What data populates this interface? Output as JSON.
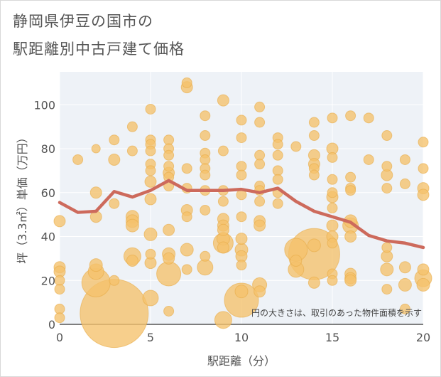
{
  "title_line1": "静岡県伊豆の国市の",
  "title_line2": "駅距離別中古戸建て価格",
  "chart_data": {
    "type": "scatter",
    "xlabel": "駅距離（分）",
    "ylabel": "坪（3.3㎡）単価（万円）",
    "xlim": [
      0,
      20
    ],
    "ylim": [
      0,
      115
    ],
    "x_ticks": [
      0,
      5,
      10,
      15,
      20
    ],
    "y_ticks": [
      0,
      20,
      40,
      60,
      80,
      100
    ],
    "grid": true,
    "annotation": "円の大きさは、取引のあった物件面積を示す",
    "colors": {
      "bubble": "#f5c26b",
      "bubble_stroke": "#e8ab48",
      "line": "#cd6a5c",
      "plot_bg": "#eef2f7",
      "grid": "#ffffff"
    },
    "bubbles": [
      {
        "x": 0,
        "y": 47,
        "s": 8
      },
      {
        "x": 0,
        "y": 26,
        "s": 8
      },
      {
        "x": 0,
        "y": 24,
        "s": 8
      },
      {
        "x": 0,
        "y": 20,
        "s": 7
      },
      {
        "x": 0,
        "y": 16,
        "s": 7
      },
      {
        "x": 0,
        "y": 7,
        "s": 7
      },
      {
        "x": 0,
        "y": 3,
        "s": 7
      },
      {
        "x": 1,
        "y": 75,
        "s": 7
      },
      {
        "x": 2,
        "y": 80,
        "s": 6
      },
      {
        "x": 2,
        "y": 60,
        "s": 8
      },
      {
        "x": 2,
        "y": 49,
        "s": 8
      },
      {
        "x": 2,
        "y": 27,
        "s": 9
      },
      {
        "x": 2,
        "y": 24,
        "s": 11
      },
      {
        "x": 2,
        "y": 19,
        "s": 20
      },
      {
        "x": 3,
        "y": 84,
        "s": 7
      },
      {
        "x": 3,
        "y": 75,
        "s": 8
      },
      {
        "x": 3,
        "y": 55,
        "s": 7
      },
      {
        "x": 3,
        "y": 20,
        "s": 7
      },
      {
        "x": 3,
        "y": 5,
        "s": 48
      },
      {
        "x": 4,
        "y": 90,
        "s": 7
      },
      {
        "x": 4,
        "y": 79,
        "s": 7
      },
      {
        "x": 4,
        "y": 49,
        "s": 9
      },
      {
        "x": 4,
        "y": 47,
        "s": 9
      },
      {
        "x": 4,
        "y": 45,
        "s": 9
      },
      {
        "x": 4,
        "y": 31,
        "s": 12
      },
      {
        "x": 4,
        "y": 29,
        "s": 8
      },
      {
        "x": 5,
        "y": 98,
        "s": 7
      },
      {
        "x": 5,
        "y": 84,
        "s": 7
      },
      {
        "x": 5,
        "y": 82,
        "s": 7
      },
      {
        "x": 5,
        "y": 79,
        "s": 7
      },
      {
        "x": 5,
        "y": 73,
        "s": 7
      },
      {
        "x": 5,
        "y": 70,
        "s": 7
      },
      {
        "x": 5,
        "y": 65,
        "s": 8
      },
      {
        "x": 5,
        "y": 57,
        "s": 8
      },
      {
        "x": 5,
        "y": 41,
        "s": 9
      },
      {
        "x": 5,
        "y": 32,
        "s": 7
      },
      {
        "x": 5,
        "y": 28,
        "s": 8
      },
      {
        "x": 5,
        "y": 12,
        "s": 11
      },
      {
        "x": 6,
        "y": 84,
        "s": 7
      },
      {
        "x": 6,
        "y": 80,
        "s": 7
      },
      {
        "x": 6,
        "y": 77,
        "s": 7
      },
      {
        "x": 6,
        "y": 72,
        "s": 7
      },
      {
        "x": 6,
        "y": 69,
        "s": 8
      },
      {
        "x": 6,
        "y": 67,
        "s": 7
      },
      {
        "x": 6,
        "y": 63,
        "s": 7
      },
      {
        "x": 6,
        "y": 43,
        "s": 8
      },
      {
        "x": 6,
        "y": 32,
        "s": 9
      },
      {
        "x": 6,
        "y": 30,
        "s": 8
      },
      {
        "x": 6,
        "y": 23,
        "s": 17
      },
      {
        "x": 6,
        "y": 6,
        "s": 7
      },
      {
        "x": 7,
        "y": 110,
        "s": 7
      },
      {
        "x": 7,
        "y": 108,
        "s": 8
      },
      {
        "x": 7,
        "y": 71,
        "s": 7
      },
      {
        "x": 7,
        "y": 62,
        "s": 7
      },
      {
        "x": 7,
        "y": 52,
        "s": 8
      },
      {
        "x": 7,
        "y": 49,
        "s": 7
      },
      {
        "x": 7,
        "y": 34,
        "s": 9
      },
      {
        "x": 7,
        "y": 25,
        "s": 7
      },
      {
        "x": 8,
        "y": 95,
        "s": 7
      },
      {
        "x": 8,
        "y": 86,
        "s": 7
      },
      {
        "x": 8,
        "y": 78,
        "s": 7
      },
      {
        "x": 8,
        "y": 75,
        "s": 7
      },
      {
        "x": 8,
        "y": 71,
        "s": 7
      },
      {
        "x": 8,
        "y": 68,
        "s": 7
      },
      {
        "x": 8,
        "y": 61,
        "s": 7
      },
      {
        "x": 8,
        "y": 52,
        "s": 7
      },
      {
        "x": 8,
        "y": 31,
        "s": 7
      },
      {
        "x": 8,
        "y": 26,
        "s": 11
      },
      {
        "x": 9,
        "y": 102,
        "s": 8
      },
      {
        "x": 9,
        "y": 79,
        "s": 7
      },
      {
        "x": 9,
        "y": 61,
        "s": 7
      },
      {
        "x": 9,
        "y": 56,
        "s": 7
      },
      {
        "x": 9,
        "y": 48,
        "s": 8
      },
      {
        "x": 9,
        "y": 45,
        "s": 8
      },
      {
        "x": 9,
        "y": 43,
        "s": 8
      },
      {
        "x": 9,
        "y": 39,
        "s": 9
      },
      {
        "x": 9,
        "y": 37,
        "s": 14
      },
      {
        "x": 9,
        "y": 35,
        "s": 8
      },
      {
        "x": 9,
        "y": 2,
        "s": 12
      },
      {
        "x": 10,
        "y": 93,
        "s": 7
      },
      {
        "x": 10,
        "y": 85,
        "s": 7
      },
      {
        "x": 10,
        "y": 72,
        "s": 7
      },
      {
        "x": 10,
        "y": 68,
        "s": 7
      },
      {
        "x": 10,
        "y": 59,
        "s": 7
      },
      {
        "x": 10,
        "y": 49,
        "s": 7
      },
      {
        "x": 10,
        "y": 39,
        "s": 8
      },
      {
        "x": 10,
        "y": 34,
        "s": 9
      },
      {
        "x": 10,
        "y": 31,
        "s": 8
      },
      {
        "x": 10,
        "y": 27,
        "s": 7
      },
      {
        "x": 10,
        "y": 15,
        "s": 9
      },
      {
        "x": 10,
        "y": 11,
        "s": 24
      },
      {
        "x": 11,
        "y": 99,
        "s": 7
      },
      {
        "x": 11,
        "y": 92,
        "s": 7
      },
      {
        "x": 11,
        "y": 77,
        "s": 7
      },
      {
        "x": 11,
        "y": 73,
        "s": 7
      },
      {
        "x": 11,
        "y": 63,
        "s": 7
      },
      {
        "x": 11,
        "y": 61,
        "s": 7
      },
      {
        "x": 11,
        "y": 56,
        "s": 7
      },
      {
        "x": 11,
        "y": 47,
        "s": 8
      },
      {
        "x": 11,
        "y": 45,
        "s": 8
      },
      {
        "x": 11,
        "y": 18,
        "s": 10
      },
      {
        "x": 11,
        "y": 15,
        "s": 8
      },
      {
        "x": 12,
        "y": 85,
        "s": 7
      },
      {
        "x": 12,
        "y": 82,
        "s": 7
      },
      {
        "x": 12,
        "y": 77,
        "s": 7
      },
      {
        "x": 12,
        "y": 70,
        "s": 7
      },
      {
        "x": 12,
        "y": 66,
        "s": 7
      },
      {
        "x": 12,
        "y": 60,
        "s": 7
      },
      {
        "x": 12,
        "y": 55,
        "s": 7
      },
      {
        "x": 13,
        "y": 81,
        "s": 7
      },
      {
        "x": 13,
        "y": 34,
        "s": 16
      },
      {
        "x": 13,
        "y": 29,
        "s": 8
      },
      {
        "x": 13,
        "y": 25,
        "s": 11
      },
      {
        "x": 14,
        "y": 92,
        "s": 7
      },
      {
        "x": 14,
        "y": 86,
        "s": 7
      },
      {
        "x": 14,
        "y": 77,
        "s": 8
      },
      {
        "x": 14,
        "y": 73,
        "s": 8
      },
      {
        "x": 14,
        "y": 71,
        "s": 7
      },
      {
        "x": 14,
        "y": 68,
        "s": 7
      },
      {
        "x": 14,
        "y": 36,
        "s": 9
      },
      {
        "x": 14,
        "y": 32,
        "s": 36
      },
      {
        "x": 14,
        "y": 19,
        "s": 8
      },
      {
        "x": 15,
        "y": 94,
        "s": 7
      },
      {
        "x": 15,
        "y": 80,
        "s": 8
      },
      {
        "x": 15,
        "y": 76,
        "s": 7
      },
      {
        "x": 15,
        "y": 66,
        "s": 7
      },
      {
        "x": 15,
        "y": 60,
        "s": 7
      },
      {
        "x": 15,
        "y": 58,
        "s": 8
      },
      {
        "x": 15,
        "y": 53,
        "s": 7
      },
      {
        "x": 15,
        "y": 45,
        "s": 8
      },
      {
        "x": 15,
        "y": 40,
        "s": 8
      },
      {
        "x": 15,
        "y": 37,
        "s": 7
      },
      {
        "x": 15,
        "y": 23,
        "s": 7
      },
      {
        "x": 15,
        "y": 20,
        "s": 7
      },
      {
        "x": 16,
        "y": 95,
        "s": 7
      },
      {
        "x": 16,
        "y": 67,
        "s": 7
      },
      {
        "x": 16,
        "y": 62,
        "s": 7
      },
      {
        "x": 16,
        "y": 61,
        "s": 7
      },
      {
        "x": 16,
        "y": 47,
        "s": 9
      },
      {
        "x": 16,
        "y": 45,
        "s": 11
      },
      {
        "x": 16,
        "y": 40,
        "s": 8
      },
      {
        "x": 16,
        "y": 23,
        "s": 8
      },
      {
        "x": 16,
        "y": 21,
        "s": 8
      },
      {
        "x": 16,
        "y": 20,
        "s": 8
      },
      {
        "x": 17,
        "y": 94,
        "s": 7
      },
      {
        "x": 17,
        "y": 75,
        "s": 7
      },
      {
        "x": 18,
        "y": 86,
        "s": 7
      },
      {
        "x": 18,
        "y": 72,
        "s": 7
      },
      {
        "x": 18,
        "y": 68,
        "s": 8
      },
      {
        "x": 18,
        "y": 62,
        "s": 7
      },
      {
        "x": 18,
        "y": 35,
        "s": 7
      },
      {
        "x": 18,
        "y": 31,
        "s": 8
      },
      {
        "x": 18,
        "y": 25,
        "s": 9
      },
      {
        "x": 18,
        "y": 16,
        "s": 7
      },
      {
        "x": 19,
        "y": 75,
        "s": 7
      },
      {
        "x": 19,
        "y": 64,
        "s": 7
      },
      {
        "x": 19,
        "y": 26,
        "s": 8
      },
      {
        "x": 19,
        "y": 18,
        "s": 9
      },
      {
        "x": 19,
        "y": 7,
        "s": 7
      },
      {
        "x": 20,
        "y": 83,
        "s": 7
      },
      {
        "x": 20,
        "y": 71,
        "s": 7
      },
      {
        "x": 20,
        "y": 62,
        "s": 8
      },
      {
        "x": 20,
        "y": 59,
        "s": 8
      },
      {
        "x": 20,
        "y": 25,
        "s": 8
      },
      {
        "x": 20,
        "y": 21,
        "s": 12
      },
      {
        "x": 20,
        "y": 18,
        "s": 9
      }
    ],
    "trend_line": {
      "x": [
        0,
        1,
        2,
        3,
        4,
        5,
        6,
        7,
        8,
        9,
        10,
        11,
        12,
        13,
        14,
        15,
        16,
        17,
        18,
        19,
        20
      ],
      "y": [
        55.5,
        51,
        51.5,
        60.5,
        58,
        61,
        65.5,
        61,
        61,
        61,
        61.5,
        60,
        62,
        56,
        51.5,
        49,
        46.5,
        40.5,
        38,
        37,
        35
      ]
    }
  }
}
